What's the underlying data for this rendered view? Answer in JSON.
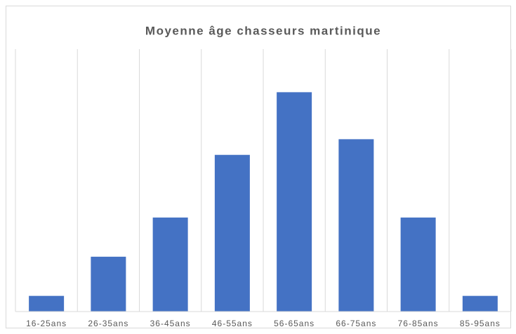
{
  "chart_data": {
    "type": "bar",
    "title": "Moyenne âge chasseurs martinique",
    "categories": [
      "16-25ans",
      "26-35ans",
      "36-45ans",
      "46-55ans",
      "56-65ans",
      "66-75ans",
      "76-85ans",
      "85-95ans"
    ],
    "values": [
      2,
      7,
      12,
      20,
      28,
      22,
      12,
      2
    ],
    "color": "#4472c4",
    "ylim": [
      0,
      33.5
    ]
  }
}
